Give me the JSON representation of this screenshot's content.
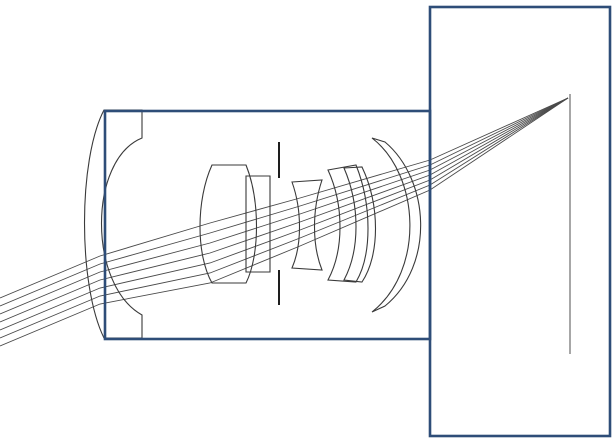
{
  "colors": {
    "background": "#ffffff",
    "box_stroke": "#2e4d78",
    "lens_stroke": "#3a3a3a",
    "ray_stroke": "#4a4a4a",
    "stop_stroke": "#1e1e1e",
    "image_plane_stroke": "#8a8a8a"
  },
  "icons": {
    "lens_group_box": "rectangle-outline",
    "sensor_box": "rectangle-outline"
  }
}
